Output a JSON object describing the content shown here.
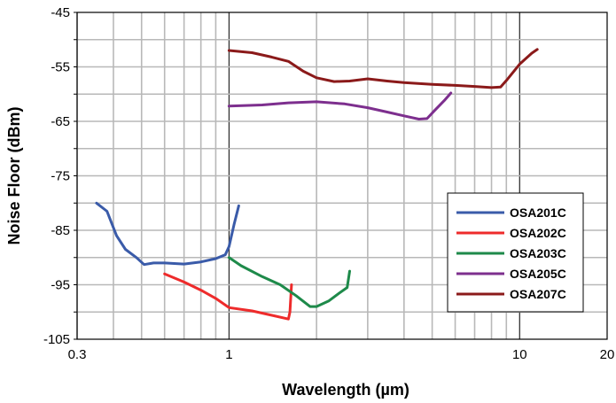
{
  "chart_data": {
    "type": "line",
    "xlabel": "Wavelength (µm)",
    "ylabel": "Noise Floor (dBm)",
    "x_scale": "log",
    "xlim": [
      0.3,
      20
    ],
    "ylim": [
      -105,
      -45
    ],
    "x_ticks": [
      {
        "value": 0.3,
        "label": "0.3"
      },
      {
        "value": 1,
        "label": "1"
      },
      {
        "value": 10,
        "label": "10"
      },
      {
        "value": 20,
        "label": "20"
      }
    ],
    "y_ticks": [
      {
        "value": -45,
        "label": "-45"
      },
      {
        "value": -55,
        "label": "-55"
      },
      {
        "value": -65,
        "label": "-65"
      },
      {
        "value": -75,
        "label": "-75"
      },
      {
        "value": -85,
        "label": "-85"
      },
      {
        "value": -95,
        "label": "-95"
      },
      {
        "value": -105,
        "label": "-105"
      }
    ],
    "grid": true,
    "legend_position": "bottom-right",
    "series": [
      {
        "name": "OSA201C",
        "color": "#3a5ba9",
        "points": [
          [
            0.35,
            -80
          ],
          [
            0.38,
            -81.5
          ],
          [
            0.41,
            -86
          ],
          [
            0.44,
            -88.5
          ],
          [
            0.48,
            -90
          ],
          [
            0.51,
            -91.3
          ],
          [
            0.55,
            -91
          ],
          [
            0.6,
            -91
          ],
          [
            0.7,
            -91.2
          ],
          [
            0.8,
            -90.8
          ],
          [
            0.9,
            -90.2
          ],
          [
            0.97,
            -89.5
          ],
          [
            1.0,
            -88
          ],
          [
            1.04,
            -84
          ],
          [
            1.08,
            -80.5
          ]
        ]
      },
      {
        "name": "OSA202C",
        "color": "#ee2b2b",
        "points": [
          [
            0.6,
            -93
          ],
          [
            0.7,
            -94.5
          ],
          [
            0.8,
            -96
          ],
          [
            0.9,
            -97.5
          ],
          [
            1.0,
            -99.2
          ],
          [
            1.2,
            -99.8
          ],
          [
            1.4,
            -100.6
          ],
          [
            1.6,
            -101.3
          ],
          [
            1.62,
            -100
          ],
          [
            1.64,
            -95
          ]
        ]
      },
      {
        "name": "OSA203C",
        "color": "#1e8a4a",
        "points": [
          [
            1.0,
            -90
          ],
          [
            1.1,
            -91.5
          ],
          [
            1.3,
            -93.5
          ],
          [
            1.5,
            -95
          ],
          [
            1.7,
            -97
          ],
          [
            1.9,
            -99
          ],
          [
            2.0,
            -99
          ],
          [
            2.2,
            -98
          ],
          [
            2.4,
            -96.5
          ],
          [
            2.55,
            -95.5
          ],
          [
            2.6,
            -92.5
          ]
        ]
      },
      {
        "name": "OSA205C",
        "color": "#7d2f8e",
        "points": [
          [
            1.0,
            -62.2
          ],
          [
            1.3,
            -62
          ],
          [
            1.6,
            -61.6
          ],
          [
            2.0,
            -61.4
          ],
          [
            2.5,
            -61.8
          ],
          [
            3.0,
            -62.5
          ],
          [
            3.5,
            -63.3
          ],
          [
            4.0,
            -64
          ],
          [
            4.5,
            -64.6
          ],
          [
            4.8,
            -64.5
          ],
          [
            5.1,
            -63
          ],
          [
            5.5,
            -61.2
          ],
          [
            5.8,
            -59.8
          ]
        ]
      },
      {
        "name": "OSA207C",
        "color": "#8b1a1a",
        "points": [
          [
            1.0,
            -52
          ],
          [
            1.2,
            -52.4
          ],
          [
            1.4,
            -53.2
          ],
          [
            1.6,
            -54
          ],
          [
            1.8,
            -55.8
          ],
          [
            2.0,
            -57
          ],
          [
            2.3,
            -57.7
          ],
          [
            2.6,
            -57.6
          ],
          [
            3.0,
            -57.2
          ],
          [
            3.5,
            -57.6
          ],
          [
            4.0,
            -57.9
          ],
          [
            5.0,
            -58.2
          ],
          [
            6.0,
            -58.4
          ],
          [
            7.0,
            -58.6
          ],
          [
            8.0,
            -58.8
          ],
          [
            8.6,
            -58.7
          ],
          [
            9.0,
            -57.5
          ],
          [
            10.0,
            -54.5
          ],
          [
            11.0,
            -52.5
          ],
          [
            11.5,
            -51.8
          ]
        ]
      }
    ]
  }
}
